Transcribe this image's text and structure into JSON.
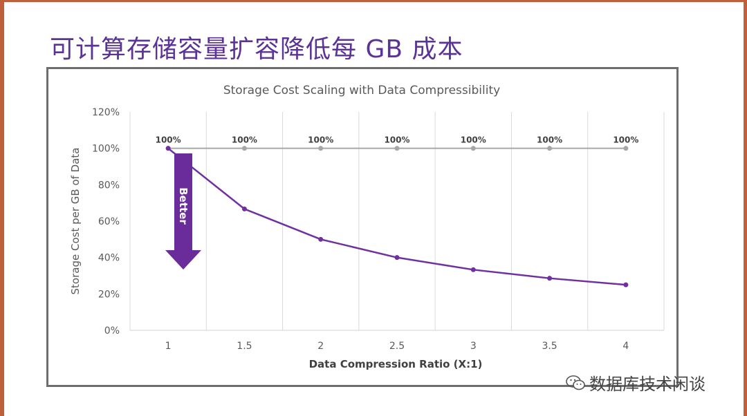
{
  "page": {
    "title": "可计算存储容量扩容降低每 GB 成本",
    "watermark": "数据库技术闲谈"
  },
  "colors": {
    "accent": "#5b3396",
    "series_primary": "#7030a0",
    "series_baseline": "#a6a6a6",
    "frame_border": "#6d6d6d",
    "side_edges": "#c0603a"
  },
  "chart_data": {
    "type": "line",
    "title": "Storage Cost Scaling with Data Compressibility",
    "xlabel": "Data Compression Ratio (X:1)",
    "ylabel": "Storage Cost per GB of Data",
    "x": [
      1,
      1.5,
      2,
      2.5,
      3,
      3.5,
      4
    ],
    "x_tick_labels": [
      "1",
      "1.5",
      "2",
      "2.5",
      "3",
      "3.5",
      "4"
    ],
    "ylim": [
      0,
      120
    ],
    "y_ticks": [
      0,
      20,
      40,
      60,
      80,
      100,
      120
    ],
    "y_tick_labels": [
      "0%",
      "20%",
      "40%",
      "60%",
      "80%",
      "100%",
      "120%"
    ],
    "grid": "vertical",
    "series": [
      {
        "values": [
          100,
          100,
          100,
          100,
          100,
          100,
          100
        ],
        "color": "#a6a6a6",
        "data_labels": [
          "100%",
          "100%",
          "100%",
          "100%",
          "100%",
          "100%",
          "100%"
        ]
      },
      {
        "values": [
          100,
          66.7,
          50,
          40,
          33.3,
          28.6,
          25
        ],
        "color": "#7030a0"
      }
    ],
    "annotation": {
      "text": "Better",
      "color": "#6a2c9a"
    }
  }
}
